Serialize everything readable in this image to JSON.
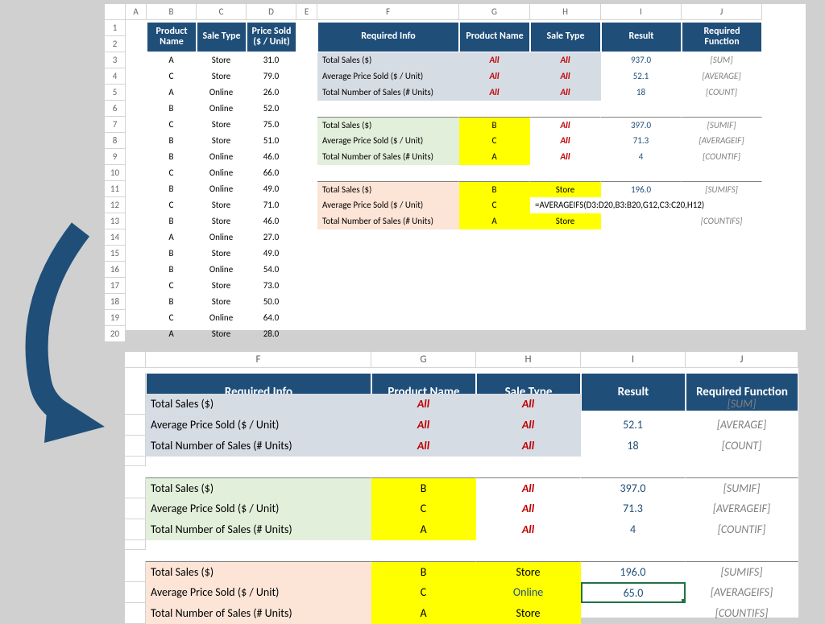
{
  "colors": {
    "header_bg": "#1f4e79",
    "header_fg": "#ffffff",
    "gray_bg": "#d6dce4",
    "green_bg": "#e2efda",
    "pink_bg": "#fce4d6",
    "yellow_bg": "#ffff00",
    "red_text": "#c00000",
    "blue_text": "#1f4e79",
    "gray_text": "#808080",
    "sel_border": "#217346",
    "page_bg": "#d0d0d0"
  },
  "top": {
    "cols": [
      "A",
      "B",
      "C",
      "D",
      "E",
      "F",
      "G",
      "H",
      "I",
      "J"
    ],
    "rows": [
      "1",
      "2",
      "3",
      "4",
      "5",
      "6",
      "7",
      "8",
      "9",
      "10",
      "11",
      "12",
      "13",
      "14",
      "15",
      "16",
      "17",
      "18",
      "19",
      "20"
    ],
    "data_headers": {
      "b": "Product Name",
      "c": "Sale Type",
      "d": "Price Sold ($ / Unit)"
    },
    "data": [
      {
        "b": "A",
        "c": "Store",
        "d": "31.0"
      },
      {
        "b": "C",
        "c": "Store",
        "d": "79.0"
      },
      {
        "b": "A",
        "c": "Online",
        "d": "26.0"
      },
      {
        "b": "B",
        "c": "Online",
        "d": "52.0"
      },
      {
        "b": "C",
        "c": "Store",
        "d": "75.0"
      },
      {
        "b": "B",
        "c": "Store",
        "d": "51.0"
      },
      {
        "b": "B",
        "c": "Online",
        "d": "46.0"
      },
      {
        "b": "C",
        "c": "Online",
        "d": "66.0"
      },
      {
        "b": "B",
        "c": "Online",
        "d": "49.0"
      },
      {
        "b": "C",
        "c": "Store",
        "d": "71.0"
      },
      {
        "b": "B",
        "c": "Store",
        "d": "46.0"
      },
      {
        "b": "A",
        "c": "Online",
        "d": "27.0"
      },
      {
        "b": "B",
        "c": "Store",
        "d": "49.0"
      },
      {
        "b": "B",
        "c": "Online",
        "d": "54.0"
      },
      {
        "b": "C",
        "c": "Store",
        "d": "73.0"
      },
      {
        "b": "B",
        "c": "Store",
        "d": "50.0"
      },
      {
        "b": "C",
        "c": "Online",
        "d": "64.0"
      },
      {
        "b": "A",
        "c": "Store",
        "d": "28.0"
      }
    ],
    "info_headers": {
      "f": "Required Info",
      "g": "Product Name",
      "h": "Sale Type",
      "i": "Result",
      "j": "Required Function"
    },
    "section1": [
      {
        "f": "Total Sales ($)",
        "g": "All",
        "h": "All",
        "i": "937.0",
        "j": "[SUM]"
      },
      {
        "f": "Average Price Sold ($ / Unit)",
        "g": "All",
        "h": "All",
        "i": "52.1",
        "j": "[AVERAGE]"
      },
      {
        "f": "Total Number of Sales (# Units)",
        "g": "All",
        "h": "All",
        "i": "18",
        "j": "[COUNT]"
      }
    ],
    "section2": [
      {
        "f": "Total Sales ($)",
        "g": "B",
        "h": "All",
        "i": "397.0",
        "j": "[SUMIF]"
      },
      {
        "f": "Average Price Sold ($ / Unit)",
        "g": "C",
        "h": "All",
        "i": "71.3",
        "j": "[AVERAGEIF]"
      },
      {
        "f": "Total Number of Sales (# Units)",
        "g": "A",
        "h": "All",
        "i": "4",
        "j": "[COUNTIF]"
      }
    ],
    "section3": [
      {
        "f": "Total Sales ($)",
        "g": "B",
        "h": "Store",
        "i": "196.0",
        "j": "[SUMIFS]"
      },
      {
        "f": "Average Price Sold ($ / Unit)",
        "g": "C",
        "formula": "=AVERAGEIFS(D3:D20,B3:B20,G12,C3:C20,H12)"
      },
      {
        "f": "Total Number of Sales (# Units)",
        "g": "A",
        "h": "Store",
        "i": "",
        "j": "[COUNTIFS]"
      }
    ]
  },
  "bottom": {
    "cols": [
      "F",
      "G",
      "H",
      "I",
      "J"
    ],
    "headers": {
      "f": "Required Info",
      "g": "Product Name",
      "h": "Sale Type",
      "i": "Result",
      "j": "Required Function"
    },
    "section1": [
      {
        "f": "Total Sales ($)",
        "g": "All",
        "h": "All",
        "i": "937.0",
        "j": "[SUM]"
      },
      {
        "f": "Average Price Sold ($ / Unit)",
        "g": "All",
        "h": "All",
        "i": "52.1",
        "j": "[AVERAGE]"
      },
      {
        "f": "Total Number of Sales (# Units)",
        "g": "All",
        "h": "All",
        "i": "18",
        "j": "[COUNT]"
      }
    ],
    "section2": [
      {
        "f": "Total Sales ($)",
        "g": "B",
        "h": "All",
        "i": "397.0",
        "j": "[SUMIF]"
      },
      {
        "f": "Average Price Sold ($ / Unit)",
        "g": "C",
        "h": "All",
        "i": "71.3",
        "j": "[AVERAGEIF]"
      },
      {
        "f": "Total Number of Sales (# Units)",
        "g": "A",
        "h": "All",
        "i": "4",
        "j": "[COUNTIF]"
      }
    ],
    "section3": [
      {
        "f": "Total Sales ($)",
        "g": "B",
        "h": "Store",
        "i": "196.0",
        "j": "[SUMIFS]"
      },
      {
        "f": "Average Price Sold ($ / Unit)",
        "g": "C",
        "h": "Online",
        "i": "65.0",
        "j": "[AVERAGEIFS]",
        "selected": true
      },
      {
        "f": "Total Number of Sales (# Units)",
        "g": "A",
        "h": "Store",
        "i": "",
        "j": "[COUNTIFS]"
      }
    ]
  }
}
